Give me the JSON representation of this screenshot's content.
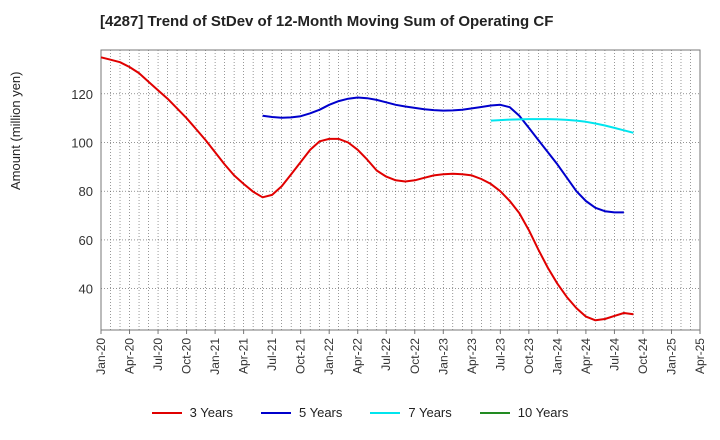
{
  "chart_data": {
    "type": "line",
    "title": "[4287]  Trend of StDev of 12-Month Moving Sum of Operating CF",
    "xlabel": "",
    "ylabel": "Amount (million yen)",
    "ylim": [
      23,
      138
    ],
    "yticks": [
      40,
      60,
      80,
      100,
      120
    ],
    "x_tick_labels": [
      "Jan-20",
      "Apr-20",
      "Jul-20",
      "Oct-20",
      "Jan-21",
      "Apr-21",
      "Jul-21",
      "Oct-21",
      "Jan-22",
      "Apr-22",
      "Jul-22",
      "Oct-22",
      "Jan-23",
      "Apr-23",
      "Jul-23",
      "Oct-23",
      "Jan-24",
      "Apr-24",
      "Jul-24",
      "Oct-24",
      "Jan-25",
      "Apr-25"
    ],
    "grid": true,
    "legend_position": "bottom",
    "series": [
      {
        "name": "3 Years",
        "color": "#e00000",
        "x": [
          "Jan-20",
          "Feb-20",
          "Mar-20",
          "Apr-20",
          "May-20",
          "Jun-20",
          "Jul-20",
          "Aug-20",
          "Sep-20",
          "Oct-20",
          "Nov-20",
          "Dec-20",
          "Jan-21",
          "Feb-21",
          "Mar-21",
          "Apr-21",
          "May-21",
          "Jun-21",
          "Jul-21",
          "Aug-21",
          "Sep-21",
          "Oct-21",
          "Nov-21",
          "Dec-21",
          "Jan-22",
          "Feb-22",
          "Mar-22",
          "Apr-22",
          "May-22",
          "Jun-22",
          "Jul-22",
          "Aug-22",
          "Sep-22",
          "Oct-22",
          "Nov-22",
          "Dec-22",
          "Jan-23",
          "Feb-23",
          "Mar-23",
          "Apr-23",
          "May-23",
          "Jun-23",
          "Jul-23",
          "Aug-23",
          "Sep-23",
          "Oct-23",
          "Nov-23",
          "Dec-23",
          "Jan-24",
          "Feb-24",
          "Mar-24",
          "Apr-24",
          "May-24",
          "Jun-24",
          "Jul-24",
          "Aug-24",
          "Sep-24",
          "Oct-24",
          "Nov-24",
          "Dec-24",
          "Jan-25"
        ],
        "values": [
          135,
          134,
          133,
          131,
          128.5,
          125,
          121.5,
          118,
          114,
          110,
          105.5,
          101,
          96,
          91,
          86.5,
          83,
          79.8,
          77.5,
          78.5,
          82,
          87,
          92,
          97,
          100.5,
          101.5,
          101.5,
          100,
          97,
          93,
          88.5,
          86,
          84.5,
          84,
          84.5,
          85.5,
          86.5,
          87,
          87.2,
          87,
          86.5,
          85,
          83,
          80,
          76,
          71,
          64,
          56,
          48.5,
          42,
          36.5,
          32,
          28.5,
          27,
          27.5,
          28.8,
          30,
          29.5,
          null,
          null,
          null,
          null
        ]
      },
      {
        "name": "5 Years",
        "color": "#0000cc",
        "x": [
          "Jun-21",
          "Jul-21",
          "Aug-21",
          "Sep-21",
          "Oct-21",
          "Nov-21",
          "Dec-21",
          "Jan-22",
          "Feb-22",
          "Mar-22",
          "Apr-22",
          "May-22",
          "Jun-22",
          "Jul-22",
          "Aug-22",
          "Sep-22",
          "Oct-22",
          "Nov-22",
          "Dec-22",
          "Jan-23",
          "Feb-23",
          "Mar-23",
          "Apr-23",
          "May-23",
          "Jun-23",
          "Jul-23",
          "Aug-23",
          "Sep-23",
          "Oct-23",
          "Nov-23",
          "Dec-23",
          "Jan-24",
          "Feb-24",
          "Mar-24",
          "Apr-24",
          "May-24",
          "Jun-24",
          "Jul-24",
          "Aug-24",
          "Sep-24",
          "Oct-24",
          "Nov-24",
          "Dec-24",
          "Jan-25"
        ],
        "values": [
          111,
          110.5,
          110.2,
          110.3,
          110.8,
          112,
          113.5,
          115.5,
          117,
          118,
          118.5,
          118.2,
          117.5,
          116.5,
          115.5,
          114.8,
          114.2,
          113.7,
          113.3,
          113.1,
          113.2,
          113.5,
          114,
          114.6,
          115.2,
          115.5,
          114.5,
          111,
          106,
          101,
          96,
          91,
          85.5,
          80,
          76,
          73.2,
          71.8,
          71.3,
          71.3,
          null,
          null,
          null,
          null,
          null
        ]
      },
      {
        "name": "7 Years",
        "color": "#00e5ee",
        "x": [
          "Jun-23",
          "Jul-23",
          "Aug-23",
          "Sep-23",
          "Oct-23",
          "Nov-23",
          "Dec-23",
          "Jan-24",
          "Feb-24",
          "Mar-24",
          "Apr-24",
          "May-24",
          "Jun-24",
          "Jul-24",
          "Aug-24",
          "Sep-24",
          "Oct-24",
          "Nov-24",
          "Dec-24",
          "Jan-25"
        ],
        "values": [
          109,
          109.2,
          109.4,
          109.5,
          109.6,
          109.6,
          109.6,
          109.5,
          109.3,
          109,
          108.5,
          107.8,
          107,
          106,
          105,
          104,
          null,
          null,
          null,
          null
        ]
      },
      {
        "name": "10 Years",
        "color": "#228b22",
        "x": [],
        "values": []
      }
    ]
  }
}
